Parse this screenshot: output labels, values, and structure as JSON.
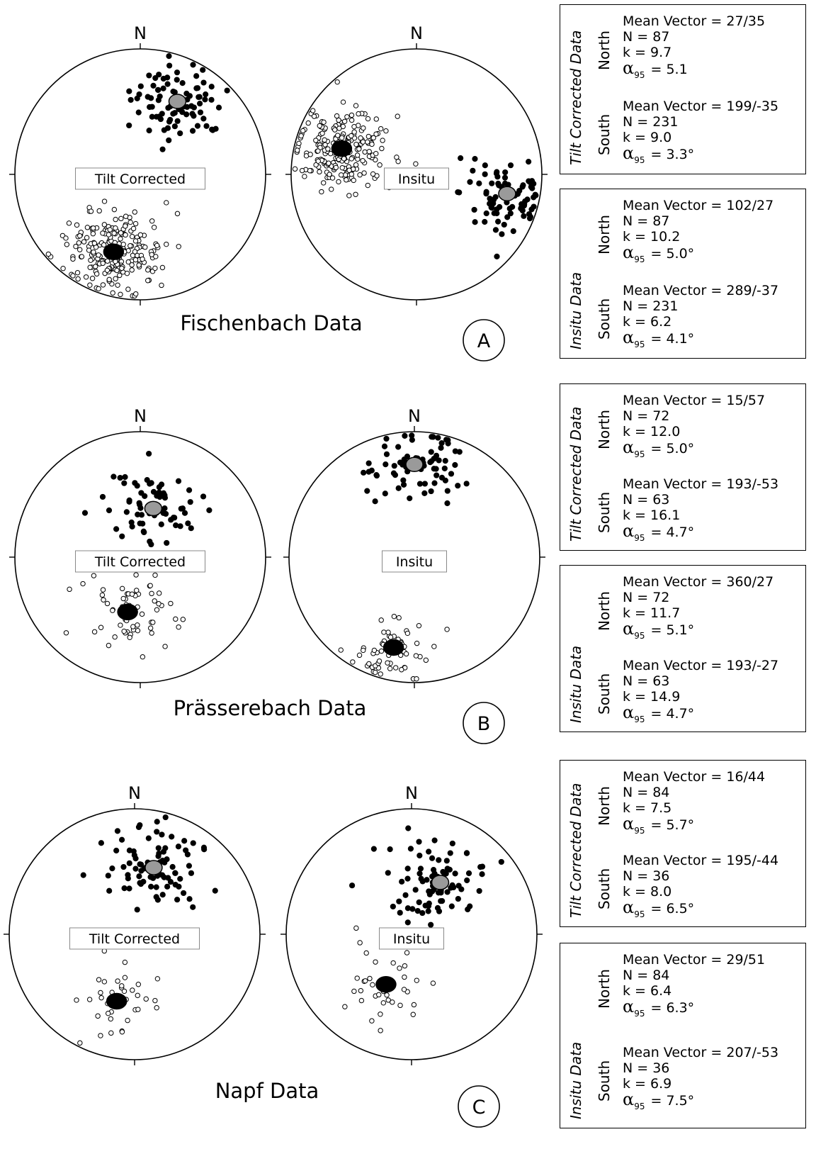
{
  "panels": [
    {
      "id": "A",
      "title": "Fischenbach Data",
      "letter": "A",
      "stereonets": [
        {
          "north_label": "N",
          "label": "Tilt Corrected",
          "north_mean": {
            "dec": 27,
            "inc": 35
          },
          "south_mean": {
            "dec": 199,
            "inc": -35
          },
          "north_n": 87,
          "south_n": 231
        },
        {
          "north_label": "N",
          "label": "Insitu",
          "north_mean": {
            "dec": 102,
            "inc": 27
          },
          "south_mean": {
            "dec": 289,
            "inc": -37
          },
          "north_n": 87,
          "south_n": 231
        }
      ],
      "stat_boxes": [
        {
          "title": "Tilt Corrected Data",
          "north": {
            "label": "North",
            "mean": "Mean Vector = 27/35",
            "n": "N = 87",
            "k": "k = 9.7",
            "a95": "= 5.1"
          },
          "south": {
            "label": "South",
            "mean": "Mean Vector = 199/-35",
            "n": "N = 231",
            "k": "k = 9.0",
            "a95": "= 3.3°"
          }
        },
        {
          "title": "Insitu Data",
          "north": {
            "label": "North",
            "mean": "Mean Vector = 102/27",
            "n": "N = 87",
            "k": "k = 10.2",
            "a95": "= 5.0°"
          },
          "south": {
            "label": "South",
            "mean": "Mean Vector = 289/-37",
            "n": "N = 231",
            "k": "k = 6.2",
            "a95": "= 4.1°"
          }
        }
      ]
    },
    {
      "id": "B",
      "title": "Prässerebach Data",
      "letter": "B",
      "stereonets": [
        {
          "north_label": "N",
          "label": "Tilt Corrected",
          "north_mean": {
            "dec": 15,
            "inc": 57
          },
          "south_mean": {
            "dec": 193,
            "inc": -53
          },
          "north_n": 72,
          "south_n": 63
        },
        {
          "north_label": "N",
          "label": "Insitu",
          "north_mean": {
            "dec": 360,
            "inc": 27
          },
          "south_mean": {
            "dec": 193,
            "inc": -27
          },
          "north_n": 72,
          "south_n": 63
        }
      ],
      "stat_boxes": [
        {
          "title": "Tilt Corrected Data",
          "north": {
            "label": "North",
            "mean": "Mean Vector = 15/57",
            "n": "N = 72",
            "k": "k = 12.0",
            "a95": "= 5.0°"
          },
          "south": {
            "label": "South",
            "mean": "Mean Vector = 193/-53",
            "n": "N = 63",
            "k": "k = 16.1",
            "a95": "= 4.7°"
          }
        },
        {
          "title": "Insitu Data",
          "north": {
            "label": "North",
            "mean": "Mean Vector = 360/27",
            "n": "N = 72",
            "k": "k = 11.7",
            "a95": "= 5.1°"
          },
          "south": {
            "label": "South",
            "mean": "Mean Vector = 193/-27",
            "n": "N = 63",
            "k": "k = 14.9",
            "a95": "= 4.7°"
          }
        }
      ]
    },
    {
      "id": "C",
      "title": "Napf Data",
      "letter": "C",
      "stereonets": [
        {
          "north_label": "N",
          "label": "Tilt Corrected",
          "north_mean": {
            "dec": 16,
            "inc": 44
          },
          "south_mean": {
            "dec": 195,
            "inc": -44
          },
          "north_n": 84,
          "south_n": 36
        },
        {
          "north_label": "N",
          "label": "Insitu",
          "north_mean": {
            "dec": 29,
            "inc": 51
          },
          "south_mean": {
            "dec": 207,
            "inc": -53
          },
          "north_n": 84,
          "south_n": 36
        }
      ],
      "stat_boxes": [
        {
          "title": "Tilt Corrected Data",
          "north": {
            "label": "North",
            "mean": "Mean Vector = 16/44",
            "n": "N = 84",
            "k": "k = 7.5",
            "a95": "= 5.7°"
          },
          "south": {
            "label": "South",
            "mean": "Mean Vector = 195/-44",
            "n": "N = 36",
            "k": "k = 8.0",
            "a95": "= 6.5°"
          }
        },
        {
          "title": "Insitu Data",
          "north": {
            "label": "North",
            "mean": "Mean Vector = 29/51",
            "n": "N = 84",
            "k": "k = 6.4",
            "a95": "= 6.3°"
          },
          "south": {
            "label": "South",
            "mean": "Mean Vector = 207/-53",
            "n": "N = 36",
            "k": "k = 6.9",
            "a95": "= 7.5°"
          }
        }
      ]
    }
  ],
  "chart_data": {
    "type": "scatter",
    "projection": "equal-area stereonet",
    "symbols": {
      "filled": "downward / north polarity",
      "open": "upward / south polarity",
      "mean_ellipse": "alpha95 confidence cone"
    },
    "colors": {
      "ink": "#000000",
      "mean_ellipse_north": "#9a9a9a",
      "mean_ellipse_south": "#000000"
    }
  }
}
